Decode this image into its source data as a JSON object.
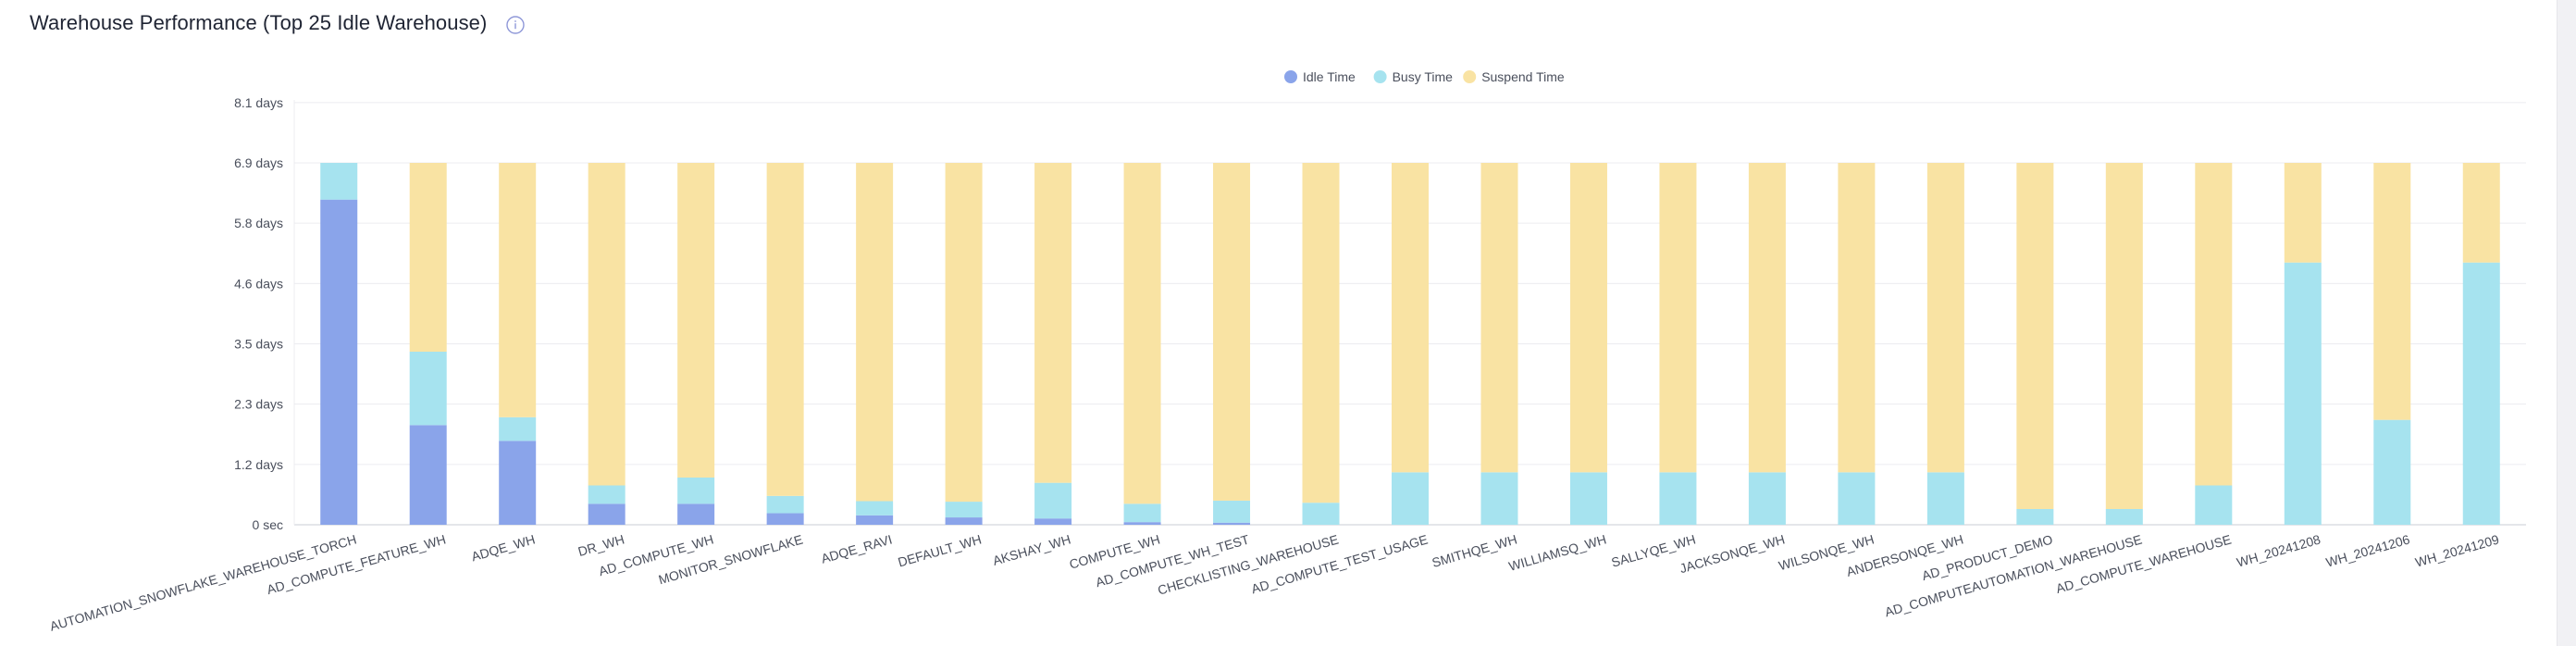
{
  "header": {
    "title": "Warehouse Performance (Top 25 Idle Warehouse)",
    "info_icon": "info-circle-icon"
  },
  "colors": {
    "idle": "#8aa4ea",
    "busy": "#a6e3ef",
    "suspend": "#f9e3a3",
    "grid": "#ececf0",
    "axis": "#c9ccd4"
  },
  "chart_data": {
    "type": "bar",
    "stacked": true,
    "title": "Warehouse Performance (Top 25 Idle Warehouse)",
    "legend": {
      "position": "top-center",
      "entries": [
        "Idle Time",
        "Busy Time",
        "Suspend Time"
      ]
    },
    "y_unit": "days",
    "ylim": [
      0,
      8.1
    ],
    "y_ticks": [
      0,
      1.15,
      2.3,
      3.45,
      4.6,
      5.75,
      6.9,
      8.05
    ],
    "y_tick_labels": [
      "0 sec",
      "1.2 days",
      "2.3 days",
      "3.5 days",
      "4.6 days",
      "5.8 days",
      "6.9 days",
      "8.1 days"
    ],
    "grid": true,
    "categories": [
      "AUTOMATION_SNOWFLAKE_WAREHOUSE_TORCH",
      "AD_COMPUTE_FEATURE_WH",
      "ADQE_WH",
      "DR_WH",
      "AD_COMPUTE_WH",
      "MONITOR_SNOWFLAKE",
      "ADQE_RAVI",
      "DEFAULT_WH",
      "AKSHAY_WH",
      "COMPUTE_WH",
      "AD_COMPUTE_WH_TEST",
      "CHECKLISTING_WAREHOUSE",
      "AD_COMPUTE_TEST_USAGE",
      "SMITHQE_WH",
      "WILLIAMSQ_WH",
      "SALLYQE_WH",
      "JACKSONQE_WH",
      "WILSONQE_WH",
      "ANDERSONQE_WH",
      "AD_PRODUCT_DEMO",
      "AD_COMPUTEAUTOMATION_WAREHOUSE",
      "AD_COMPUTE_WAREHOUSE",
      "WH_20241208",
      "WH_20241206",
      "WH_20241209"
    ],
    "series": [
      {
        "name": "Idle Time",
        "values": [
          6.2,
          1.9,
          1.6,
          0.4,
          0.4,
          0.22,
          0.18,
          0.14,
          0.12,
          0.05,
          0.04,
          0,
          0,
          0,
          0,
          0,
          0,
          0,
          0,
          0,
          0,
          0,
          0,
          0,
          0
        ]
      },
      {
        "name": "Busy Time",
        "values": [
          0.7,
          1.4,
          0.45,
          0.35,
          0.5,
          0.33,
          0.27,
          0.3,
          0.68,
          0.35,
          0.42,
          0.42,
          1.0,
          1.0,
          1.0,
          1.0,
          1.0,
          1.0,
          1.0,
          0.3,
          0.3,
          0.75,
          5.0,
          2.0,
          5.0
        ]
      },
      {
        "name": "Suspend Time",
        "values": [
          0,
          3.6,
          4.85,
          6.15,
          6.0,
          6.35,
          6.45,
          6.46,
          6.1,
          6.5,
          6.44,
          6.48,
          5.9,
          5.9,
          5.9,
          5.9,
          5.9,
          5.9,
          5.9,
          6.6,
          6.6,
          6.15,
          1.9,
          4.9,
          1.9
        ]
      }
    ]
  }
}
